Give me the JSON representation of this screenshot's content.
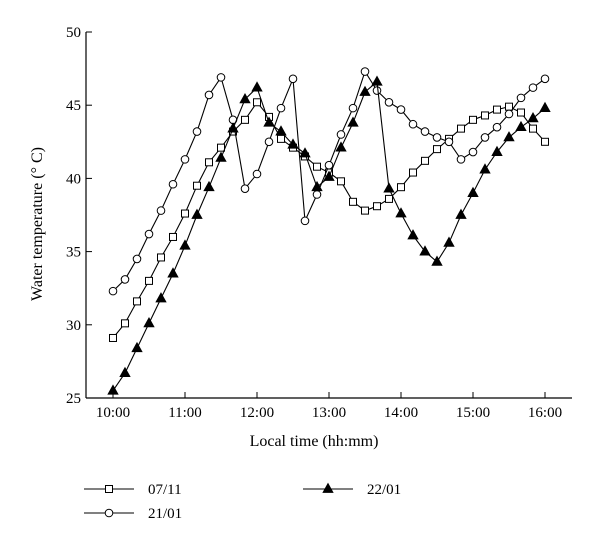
{
  "chart_data": {
    "type": "line",
    "title": "",
    "xlabel": "Local time (hh:mm)",
    "ylabel": "Water temperature (° C)",
    "ylim": [
      25,
      50
    ],
    "xlim": [
      "10:00",
      "16:00"
    ],
    "x_ticks": [
      "10:00",
      "11:00",
      "12:00",
      "13:00",
      "14:00",
      "15:00",
      "16:00"
    ],
    "y_ticks": [
      25,
      30,
      35,
      40,
      45,
      50
    ],
    "grid": false,
    "legend_position": "bottom",
    "series": [
      {
        "name": "07/11",
        "marker": "open-square",
        "color": "#000000",
        "points": [
          [
            "10:00",
            29.1
          ],
          [
            "10:10",
            30.1
          ],
          [
            "10:20",
            31.6
          ],
          [
            "10:30",
            33.0
          ],
          [
            "10:40",
            34.6
          ],
          [
            "10:50",
            36.0
          ],
          [
            "11:00",
            37.6
          ],
          [
            "11:10",
            39.5
          ],
          [
            "11:20",
            41.1
          ],
          [
            "11:30",
            42.1
          ],
          [
            "11:40",
            43.2
          ],
          [
            "11:50",
            44.0
          ],
          [
            "12:00",
            45.2
          ],
          [
            "12:10",
            44.2
          ],
          [
            "12:20",
            42.7
          ],
          [
            "12:30",
            42.1
          ],
          [
            "12:40",
            41.5
          ],
          [
            "12:50",
            40.8
          ],
          [
            "13:00",
            40.4
          ],
          [
            "13:10",
            39.8
          ],
          [
            "13:20",
            38.4
          ],
          [
            "13:30",
            37.8
          ],
          [
            "13:40",
            38.1
          ],
          [
            "13:50",
            38.6
          ],
          [
            "14:00",
            39.4
          ],
          [
            "14:10",
            40.4
          ],
          [
            "14:20",
            41.2
          ],
          [
            "14:30",
            42.0
          ],
          [
            "14:40",
            42.7
          ],
          [
            "14:50",
            43.4
          ],
          [
            "15:00",
            44.0
          ],
          [
            "15:10",
            44.3
          ],
          [
            "15:20",
            44.7
          ],
          [
            "15:30",
            44.9
          ],
          [
            "15:40",
            44.5
          ],
          [
            "15:50",
            43.4
          ],
          [
            "16:00",
            42.5
          ]
        ]
      },
      {
        "name": "21/01",
        "marker": "open-circle",
        "color": "#000000",
        "points": [
          [
            "10:00",
            32.3
          ],
          [
            "10:10",
            33.1
          ],
          [
            "10:20",
            34.5
          ],
          [
            "10:30",
            36.2
          ],
          [
            "10:40",
            37.8
          ],
          [
            "10:50",
            39.6
          ],
          [
            "11:00",
            41.3
          ],
          [
            "11:10",
            43.2
          ],
          [
            "11:20",
            45.7
          ],
          [
            "11:30",
            46.9
          ],
          [
            "11:40",
            44.0
          ],
          [
            "11:50",
            39.3
          ],
          [
            "12:00",
            40.3
          ],
          [
            "12:10",
            42.5
          ],
          [
            "12:20",
            44.8
          ],
          [
            "12:30",
            46.8
          ],
          [
            "12:40",
            37.1
          ],
          [
            "12:50",
            38.9
          ],
          [
            "13:00",
            40.9
          ],
          [
            "13:10",
            43.0
          ],
          [
            "13:20",
            44.8
          ],
          [
            "13:30",
            47.3
          ],
          [
            "13:40",
            46.0
          ],
          [
            "13:50",
            45.2
          ],
          [
            "14:00",
            44.7
          ],
          [
            "14:10",
            43.7
          ],
          [
            "14:20",
            43.2
          ],
          [
            "14:30",
            42.8
          ],
          [
            "14:40",
            42.5
          ],
          [
            "14:50",
            41.3
          ],
          [
            "15:00",
            41.8
          ],
          [
            "15:10",
            42.8
          ],
          [
            "15:20",
            43.5
          ],
          [
            "15:30",
            44.4
          ],
          [
            "15:40",
            45.5
          ],
          [
            "15:50",
            46.2
          ],
          [
            "16:00",
            46.8
          ]
        ]
      },
      {
        "name": "22/01",
        "marker": "filled-triangle",
        "color": "#000000",
        "points": [
          [
            "10:00",
            25.5
          ],
          [
            "10:10",
            26.7
          ],
          [
            "10:20",
            28.4
          ],
          [
            "10:30",
            30.1
          ],
          [
            "10:40",
            31.8
          ],
          [
            "10:50",
            33.5
          ],
          [
            "11:00",
            35.4
          ],
          [
            "11:10",
            37.5
          ],
          [
            "11:20",
            39.4
          ],
          [
            "11:30",
            41.4
          ],
          [
            "11:40",
            43.4
          ],
          [
            "11:50",
            45.4
          ],
          [
            "12:00",
            46.2
          ],
          [
            "12:10",
            43.8
          ],
          [
            "12:20",
            43.2
          ],
          [
            "12:30",
            42.3
          ],
          [
            "12:40",
            41.7
          ],
          [
            "12:50",
            39.4
          ],
          [
            "13:00",
            40.1
          ],
          [
            "13:10",
            42.1
          ],
          [
            "13:20",
            43.8
          ],
          [
            "13:30",
            45.9
          ],
          [
            "13:40",
            46.6
          ],
          [
            "13:50",
            39.3
          ],
          [
            "14:00",
            37.6
          ],
          [
            "14:10",
            36.1
          ],
          [
            "14:20",
            35.0
          ],
          [
            "14:30",
            34.3
          ],
          [
            "14:40",
            35.6
          ],
          [
            "14:50",
            37.5
          ],
          [
            "15:00",
            39.0
          ],
          [
            "15:10",
            40.6
          ],
          [
            "15:20",
            41.8
          ],
          [
            "15:30",
            42.8
          ],
          [
            "15:40",
            43.5
          ],
          [
            "15:50",
            44.1
          ],
          [
            "16:00",
            44.8
          ]
        ]
      }
    ]
  }
}
